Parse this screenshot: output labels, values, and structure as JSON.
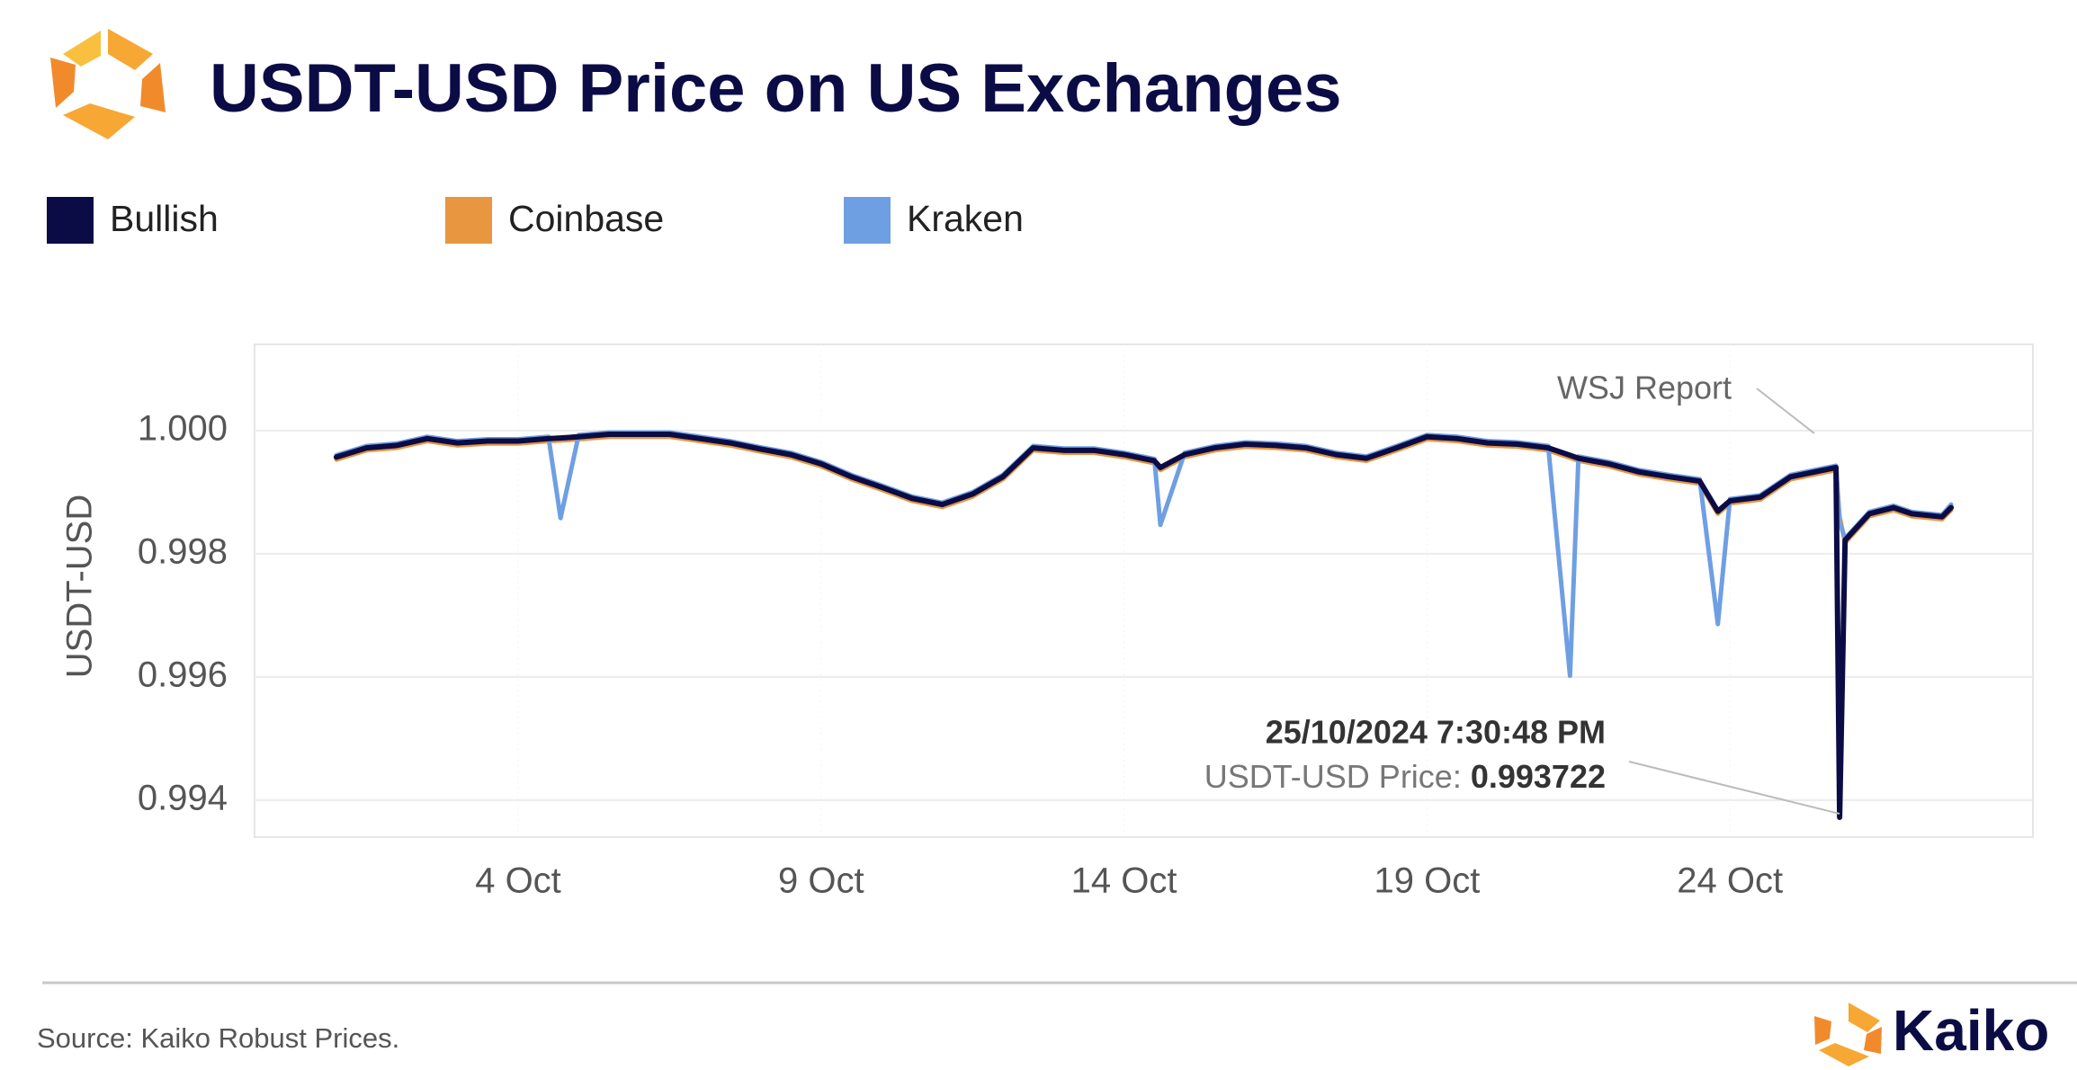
{
  "chart_data": {
    "type": "line",
    "title": "USDT-USD Price on US Exchanges",
    "y_label": "USDT-USD",
    "source": "Source: Kaiko Robust Prices.",
    "brand": "Kaiko",
    "legend_position": "top-left",
    "grid": true,
    "x": [
      1,
      1.5,
      2,
      2.5,
      3,
      3.5,
      4,
      4.5,
      4.7,
      5,
      5.5,
      6,
      6.5,
      7,
      7.5,
      8,
      8.5,
      9,
      9.5,
      10,
      10.5,
      11,
      11.5,
      12,
      12.5,
      13,
      13.5,
      14,
      14.5,
      14.6,
      15,
      15.5,
      16,
      16.5,
      17,
      17.5,
      18,
      18.5,
      19,
      19.5,
      20,
      20.5,
      21,
      21.36,
      21.5,
      22,
      22.5,
      23,
      23.5,
      23.8,
      24,
      24.5,
      25,
      25.5,
      25.75,
      25.81,
      25.9,
      26.3,
      26.7,
      27,
      27.5,
      27.65
    ],
    "series": [
      {
        "name": "Bullish",
        "color": "#0b0c45",
        "values": [
          0.99957,
          0.99972,
          0.99976,
          0.99987,
          0.9998,
          0.99983,
          0.99983,
          0.99987,
          0.99988,
          0.9999,
          0.99994,
          0.99994,
          0.99994,
          0.99987,
          0.9998,
          0.9997,
          0.99961,
          0.99946,
          0.99925,
          0.99908,
          0.9989,
          0.9988,
          0.99897,
          0.99925,
          0.99972,
          0.99968,
          0.99968,
          0.99961,
          0.99951,
          0.9994,
          0.99961,
          0.99972,
          0.99978,
          0.99976,
          0.99972,
          0.99961,
          0.99955,
          0.99972,
          0.9999,
          0.99987,
          0.9998,
          0.99978,
          0.99972,
          0.9996,
          0.99955,
          0.99946,
          0.99933,
          0.99925,
          0.99918,
          0.99869,
          0.99886,
          0.99892,
          0.99925,
          0.99935,
          0.9994,
          0.993722,
          0.99822,
          0.99865,
          0.99875,
          0.99865,
          0.9986,
          0.99875
        ]
      },
      {
        "name": "Coinbase",
        "color": "#e8963f",
        "values": [
          0.99953,
          0.99968,
          0.99972,
          0.99983,
          0.99976,
          0.99979,
          0.99979,
          0.99983,
          0.99984,
          0.99986,
          0.9999,
          0.9999,
          0.9999,
          0.99983,
          0.99976,
          0.99966,
          0.99957,
          0.99942,
          0.99921,
          0.99904,
          0.99886,
          0.99876,
          0.99893,
          0.99921,
          0.99968,
          0.99964,
          0.99964,
          0.99957,
          0.99947,
          0.99936,
          0.99957,
          0.99968,
          0.99974,
          0.99972,
          0.99968,
          0.99957,
          0.99951,
          0.99968,
          0.99986,
          0.99983,
          0.99976,
          0.99974,
          0.99968,
          0.99956,
          0.99951,
          0.99942,
          0.99929,
          0.99921,
          0.99914,
          0.99865,
          0.99882,
          0.99888,
          0.99921,
          0.99931,
          0.99936,
          0.9986,
          0.99818,
          0.99861,
          0.99871,
          0.99861,
          0.99856,
          0.99871
        ]
      },
      {
        "name": "Kraken",
        "color": "#6f9fe3",
        "values": [
          0.9996,
          0.99975,
          0.99979,
          0.9999,
          0.99983,
          0.99986,
          0.99986,
          0.9999,
          0.99858,
          0.99993,
          0.99997,
          0.99997,
          0.99997,
          0.9999,
          0.99983,
          0.99973,
          0.99964,
          0.99949,
          0.99928,
          0.99911,
          0.99893,
          0.99883,
          0.999,
          0.99928,
          0.99975,
          0.99971,
          0.99971,
          0.99964,
          0.99954,
          0.99847,
          0.99964,
          0.99975,
          0.99981,
          0.99979,
          0.99975,
          0.99964,
          0.99958,
          0.99975,
          0.99993,
          0.9999,
          0.99983,
          0.99981,
          0.99975,
          0.99602,
          0.99958,
          0.99949,
          0.99936,
          0.99928,
          0.99921,
          0.99686,
          0.99889,
          0.99895,
          0.99928,
          0.99938,
          0.99943,
          0.9985,
          0.99825,
          0.99868,
          0.99878,
          0.99868,
          0.99863,
          0.9988
        ]
      }
    ],
    "xlim": [
      -0.35,
      29
    ],
    "xticks": [
      {
        "value": 4,
        "label": "4 Oct"
      },
      {
        "value": 9,
        "label": "9 Oct"
      },
      {
        "value": 14,
        "label": "14 Oct"
      },
      {
        "value": 19,
        "label": "19 Oct"
      },
      {
        "value": 24,
        "label": "24 Oct"
      }
    ],
    "ylim": [
      0.9934,
      1.0014
    ],
    "yticks": [
      {
        "value": 1,
        "label": "1.000"
      },
      {
        "value": 0.998,
        "label": "0.998"
      },
      {
        "value": 0.996,
        "label": "0.996"
      },
      {
        "value": 0.994,
        "label": "0.994"
      }
    ],
    "annotations": [
      "WSJ Report",
      "25/10/2024 7:30:48 PM",
      "USDT-USD Price:"
    ]
  }
}
